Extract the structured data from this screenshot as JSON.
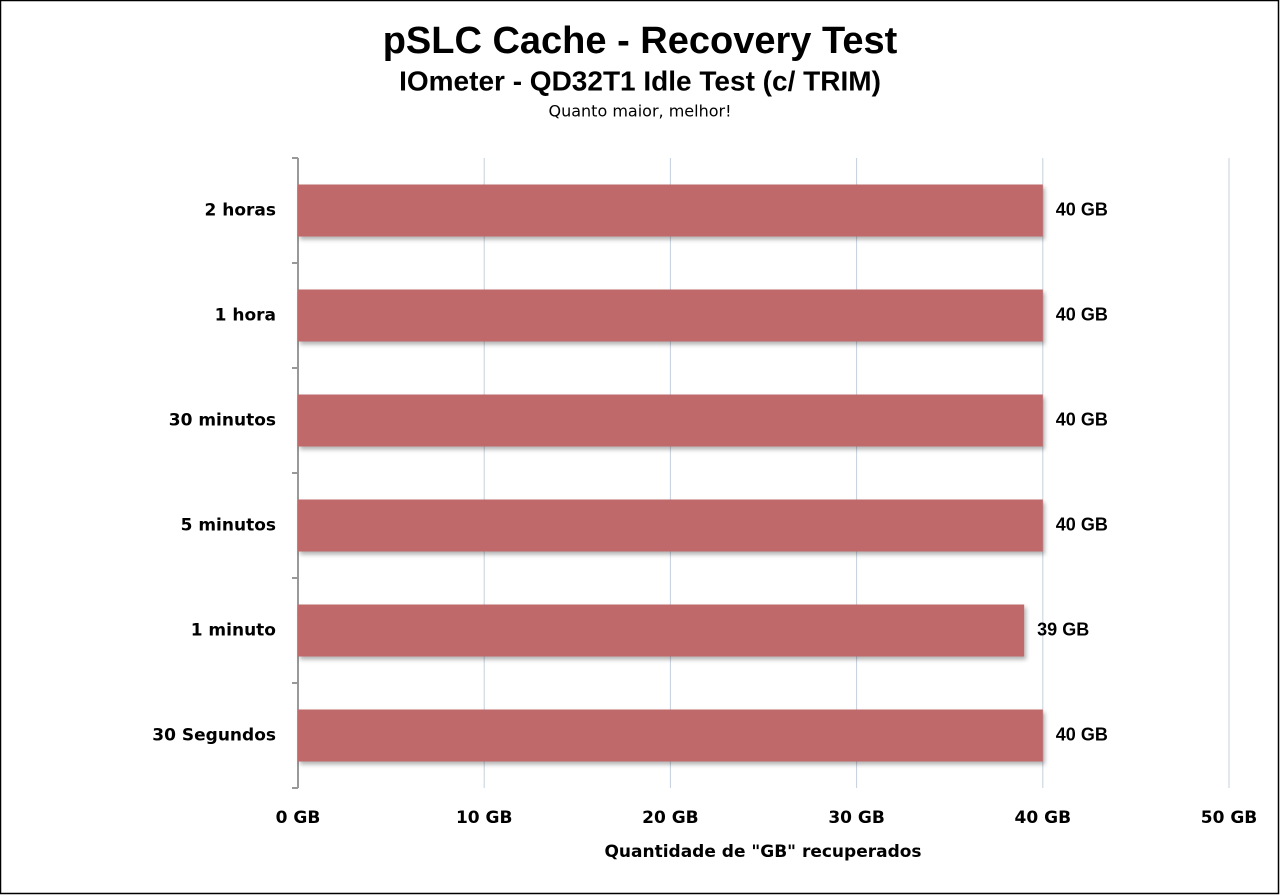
{
  "chart_data": {
    "type": "bar",
    "orientation": "horizontal",
    "title": "pSLC Cache - Recovery Test",
    "subtitle": "IOmeter - QD32T1 Idle Test (c/ TRIM)",
    "annotation": "Quanto maior, melhor!",
    "x_label": "Quantidade de \"GB\" recuperados",
    "categories": [
      "2 horas",
      "1 hora",
      "30 minutos",
      "5 minutos",
      "1 minuto",
      "30 Segundos"
    ],
    "values": [
      40,
      40,
      40,
      40,
      39,
      40
    ],
    "value_labels": [
      "40 GB",
      "40 GB",
      "40 GB",
      "40 GB",
      "39 GB",
      "40 GB"
    ],
    "color": "#c0696a",
    "xlim": [
      0,
      50
    ],
    "xticks": [
      {
        "value": 0,
        "label": "0 GB"
      },
      {
        "value": 10,
        "label": "10 GB"
      },
      {
        "value": 20,
        "label": "20 GB"
      },
      {
        "value": 30,
        "label": "30 GB"
      },
      {
        "value": 40,
        "label": "40 GB"
      },
      {
        "value": 50,
        "label": "50 GB"
      }
    ],
    "grid": true
  }
}
